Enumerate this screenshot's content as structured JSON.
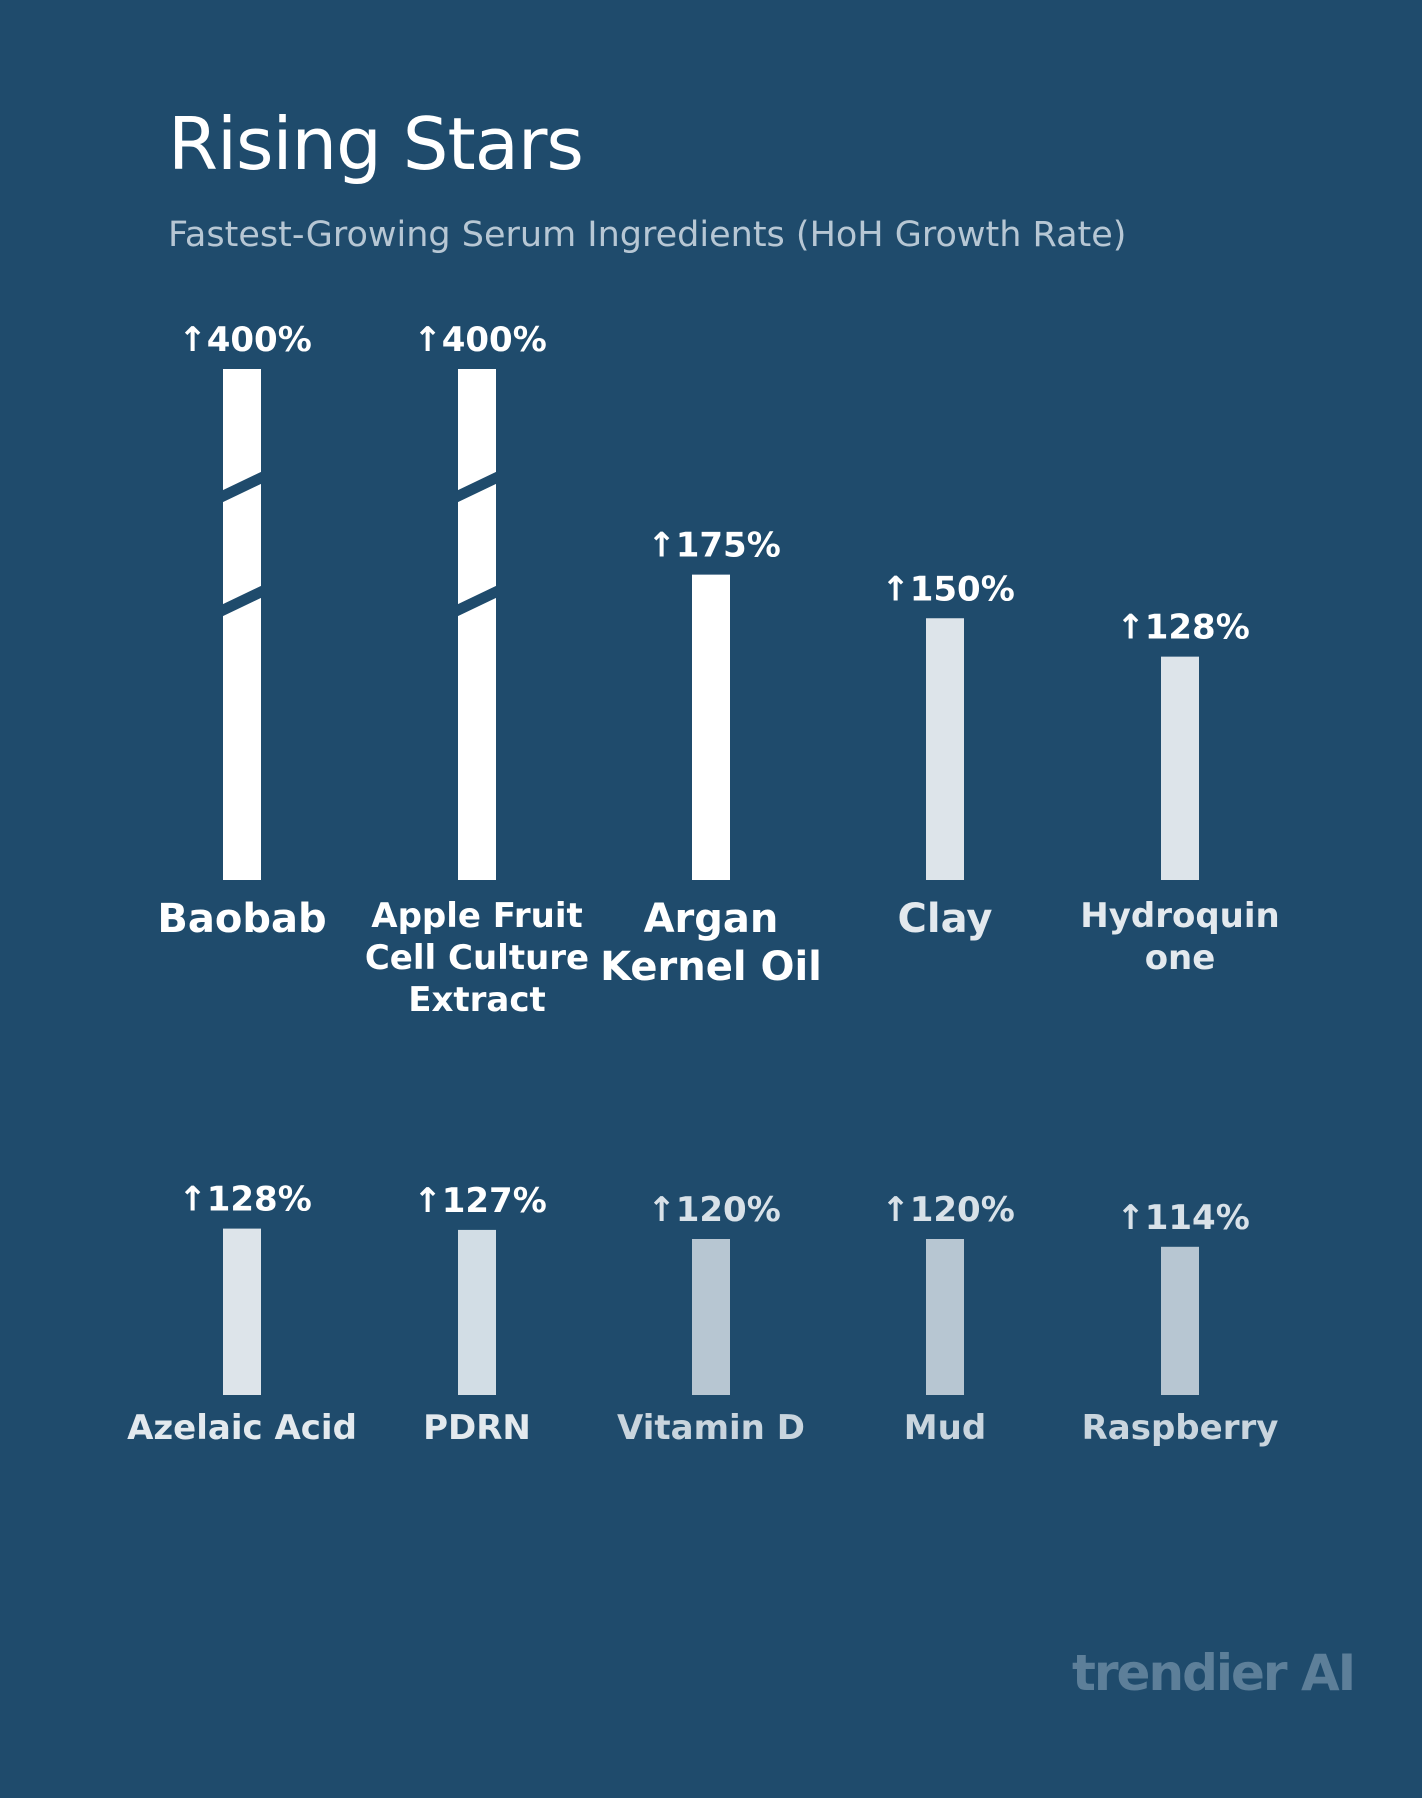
{
  "header": {
    "title": "Rising Stars",
    "subtitle": "Fastest-Growing Serum Ingredients (HoH Growth Rate)"
  },
  "watermark": "trendier AI",
  "chart_data": {
    "type": "bar",
    "title": "Rising Stars",
    "subtitle": "Fastest-Growing Serum Ingredients (HoH Growth Rate)",
    "unit": "%",
    "value_prefix": "↑",
    "broken_axis_for": [
      "Baobab",
      "Apple Fruit Cell Culture Extract"
    ],
    "categories": [
      "Baobab",
      "Apple Fruit Cell Culture Extract",
      "Argan Kernel Oil",
      "Clay",
      "Hydroquinone",
      "Azelaic Acid",
      "PDRN",
      "Vitamin D",
      "Mud",
      "Raspberry"
    ],
    "values": [
      400,
      400,
      175,
      150,
      128,
      128,
      127,
      120,
      120,
      114
    ],
    "rows": [
      {
        "items": [
          {
            "label_lines": [
              "Baobab"
            ],
            "value": 400,
            "value_label": "400%",
            "broken": true,
            "color": "#ffffff"
          },
          {
            "label_lines": [
              "Apple Fruit",
              "Cell Culture",
              "Extract"
            ],
            "value": 400,
            "value_label": "400%",
            "broken": true,
            "color": "#ffffff"
          },
          {
            "label_lines": [
              "Argan",
              "Kernel Oil"
            ],
            "value": 175,
            "value_label": "175%",
            "broken": false,
            "color": "#ffffff"
          },
          {
            "label_lines": [
              "Clay"
            ],
            "value": 150,
            "value_label": "150%",
            "broken": false,
            "color": "#dde4ea"
          },
          {
            "label_lines": [
              "Hydroquin",
              "one"
            ],
            "value": 128,
            "value_label": "128%",
            "broken": false,
            "color": "#dde4ea"
          }
        ]
      },
      {
        "items": [
          {
            "label_lines": [
              "Azelaic Acid"
            ],
            "value": 128,
            "value_label": "128%",
            "broken": false,
            "color": "#dde4ea"
          },
          {
            "label_lines": [
              "PDRN"
            ],
            "value": 127,
            "value_label": "127%",
            "broken": false,
            "color": "#d2dde5"
          },
          {
            "label_lines": [
              "Vitamin D"
            ],
            "value": 120,
            "value_label": "120%",
            "broken": false,
            "color": "#b7c6d2"
          },
          {
            "label_lines": [
              "Mud"
            ],
            "value": 120,
            "value_label": "120%",
            "broken": false,
            "color": "#b7c6d2"
          },
          {
            "label_lines": [
              "Raspberry"
            ],
            "value": 114,
            "value_label": "114%",
            "broken": false,
            "color": "#b7c6d2"
          }
        ]
      }
    ],
    "grid": false,
    "legend": "none"
  }
}
